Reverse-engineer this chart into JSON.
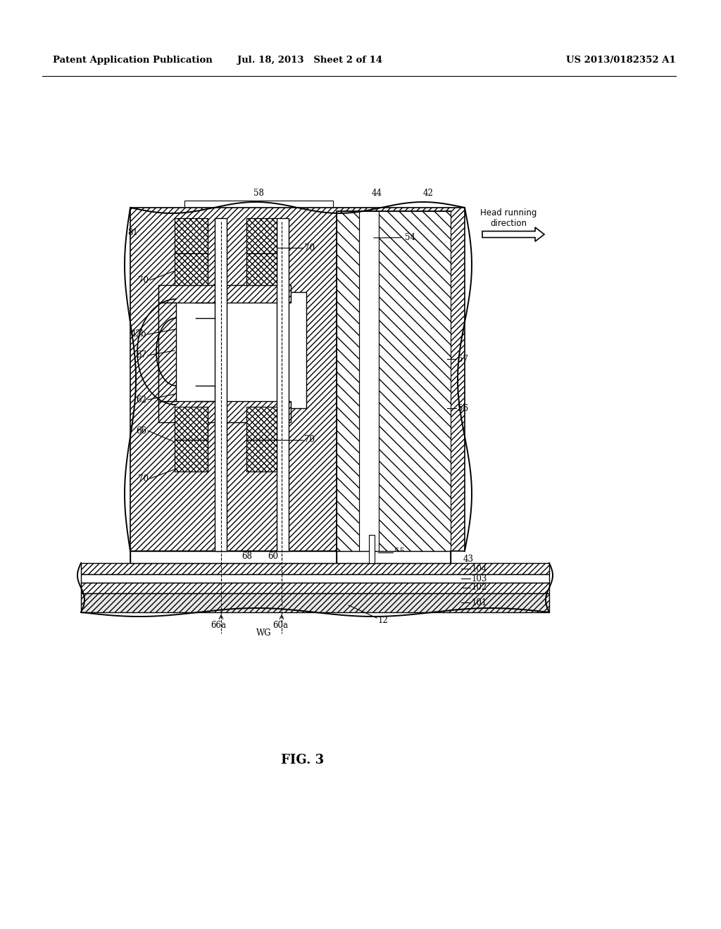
{
  "bg_color": "#ffffff",
  "title_left": "Patent Application Publication",
  "title_mid": "Jul. 18, 2013   Sheet 2 of 14",
  "title_right": "US 2013/0182352 A1",
  "fig_label": "FIG. 3",
  "head_running_text": "Head running\ndirection"
}
